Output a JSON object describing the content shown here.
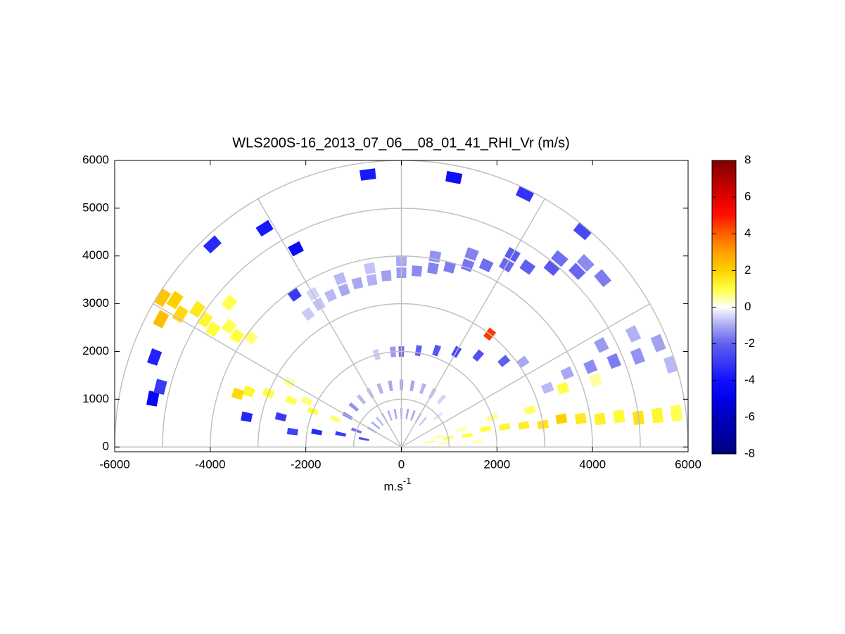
{
  "chart_data": {
    "type": "polar-rhi",
    "title": "WLS200S-16_2013_07_06__08_01_41_RHI_Vr (m/s)",
    "xlabel": {
      "base": "m.s",
      "superscript": "-1"
    },
    "xlim": [
      -6000,
      6000
    ],
    "xticks": [
      -6000,
      -4000,
      -2000,
      0,
      2000,
      4000,
      6000
    ],
    "ylim": [
      -100,
      6000
    ],
    "yticks": [
      0,
      1000,
      2000,
      3000,
      4000,
      5000,
      6000
    ],
    "polar_grid": {
      "rings": [
        1000,
        2000,
        3000,
        4000,
        5000,
        6000
      ],
      "spokes": [
        0,
        30,
        60,
        90,
        120,
        150,
        180
      ],
      "color": "#c0c0c0"
    },
    "colorbar": {
      "clim": [
        -8,
        8
      ],
      "ticks": [
        -8,
        -6,
        -4,
        -2,
        0,
        2,
        4,
        6,
        8
      ],
      "colormap": [
        "#000080",
        "#00009f",
        "#0000c0",
        "#0000e8",
        "#1010ff",
        "#3a3af5",
        "#6060f0",
        "#a8a8f2",
        "#ffffff",
        "#ffff40",
        "#ffd000",
        "#ffa000",
        "#ff6000",
        "#ff1000",
        "#e00000",
        "#b00000",
        "#800000"
      ]
    },
    "cells": {
      "elevation": [
        125,
        120,
        115,
        110,
        105,
        100,
        95,
        90,
        85,
        80,
        75,
        70,
        65,
        60,
        55,
        50,
        45,
        40,
        120,
        110,
        100,
        90,
        80,
        70,
        60,
        50,
        45,
        148,
        147,
        149,
        146,
        147,
        148,
        145,
        146,
        144,
        152,
        10,
        11,
        10,
        12,
        11,
        10,
        9,
        10,
        9,
        8,
        8,
        7,
        7,
        7,
        15,
        16,
        18,
        16,
        20,
        19,
        5,
        4,
        50,
        60,
        70,
        80,
        90,
        100,
        110,
        120,
        130,
        140,
        150,
        50,
        60,
        70,
        80,
        90,
        100,
        110,
        120,
        130,
        140,
        150,
        40,
        160,
        90,
        80,
        70,
        60,
        50,
        40,
        35,
        95,
        105,
        157,
        158,
        157,
        158,
        160,
        154,
        150,
        162,
        168,
        168,
        170,
        172,
        166,
        169,
        22,
        24,
        23,
        22,
        21,
        22,
        27,
        26,
        17,
        97,
        79,
        64,
        50,
        122,
        118,
        133,
        160,
        169,
        125,
        52,
        140,
        166
      ],
      "range": [
        3400,
        3450,
        3500,
        3500,
        3550,
        3550,
        3600,
        3650,
        3700,
        3800,
        3900,
        4050,
        4200,
        4400,
        4600,
        4900,
        5200,
        5500,
        3700,
        3750,
        3800,
        3900,
        4050,
        4300,
        4650,
        5150,
        5450,
        5900,
        5650,
        5400,
        5150,
        4900,
        4650,
        4400,
        4150,
        3900,
        5700,
        600,
        1000,
        1400,
        1800,
        2200,
        2600,
        3000,
        3400,
        3800,
        4200,
        4600,
        5000,
        5400,
        5800,
        800,
        1300,
        2000,
        2800,
        3600,
        4300,
        900,
        1600,
        700,
        700,
        700,
        700,
        700,
        700,
        700,
        700,
        700,
        700,
        700,
        1300,
        1300,
        1300,
        1300,
        1300,
        1300,
        1300,
        1300,
        1300,
        1300,
        1300,
        1000,
        1000,
        2000,
        2050,
        2150,
        2300,
        2500,
        2800,
        3100,
        2000,
        2000,
        1500,
        2000,
        2500,
        3000,
        3400,
        2200,
        2700,
        3600,
        800,
        1300,
        1800,
        2300,
        2600,
        3300,
        3300,
        3800,
        4300,
        4800,
        5300,
        5800,
        4700,
        5400,
        5900,
        5750,
        5750,
        5900,
        5900,
        5400,
        4700,
        5800,
        5500,
        5300,
        3900,
        3000,
        4700,
        5200
      ],
      "values": [
        -0.6,
        -0.7,
        -0.8,
        -1,
        -1,
        -0.9,
        -1.1,
        -1.2,
        -1.4,
        -1.5,
        -1.6,
        -1.7,
        -1.8,
        -1.9,
        -2,
        -2.2,
        -1.9,
        -1.6,
        -0.5,
        -0.8,
        -0.7,
        -1,
        -1.3,
        -1.5,
        -2.1,
        -1.8,
        -1.4,
        2.2,
        2,
        1.8,
        1.5,
        1.2,
        1,
        0.9,
        1,
        0.7,
        2.4,
        0.6,
        0.8,
        0.9,
        1,
        1.2,
        1.4,
        1.6,
        2,
        1.5,
        1.3,
        1.1,
        1.6,
        1.2,
        0.9,
        0.5,
        0.4,
        0.6,
        0.8,
        1,
        0.5,
        0.4,
        0.3,
        -0.6,
        -0.8,
        -1,
        -1,
        -1.1,
        -1,
        -0.9,
        -0.8,
        -0.8,
        -1,
        -1.2,
        -0.5,
        -0.7,
        -0.9,
        -1,
        -1,
        -1,
        -0.9,
        -0.7,
        -0.8,
        -1.3,
        -1.6,
        -0.3,
        -1.8,
        -1.8,
        -2,
        -2.3,
        -2.6,
        -2.4,
        -2,
        -1,
        -1.2,
        -0.6,
        0.8,
        1,
        0.9,
        1,
        1.2,
        0.7,
        0.5,
        1.8,
        -2.5,
        -3,
        -3.4,
        -2.8,
        -3,
        -3.5,
        -0.8,
        -1,
        -1.4,
        -1.6,
        -1.3,
        -1.1,
        -1.2,
        -0.9,
        -0.8,
        -3.8,
        -4.2,
        -3.2,
        -2.6,
        -3.8,
        -4.4,
        -3.4,
        -3.6,
        -4.5,
        -3,
        4.5,
        0.9,
        -3
      ]
    }
  }
}
